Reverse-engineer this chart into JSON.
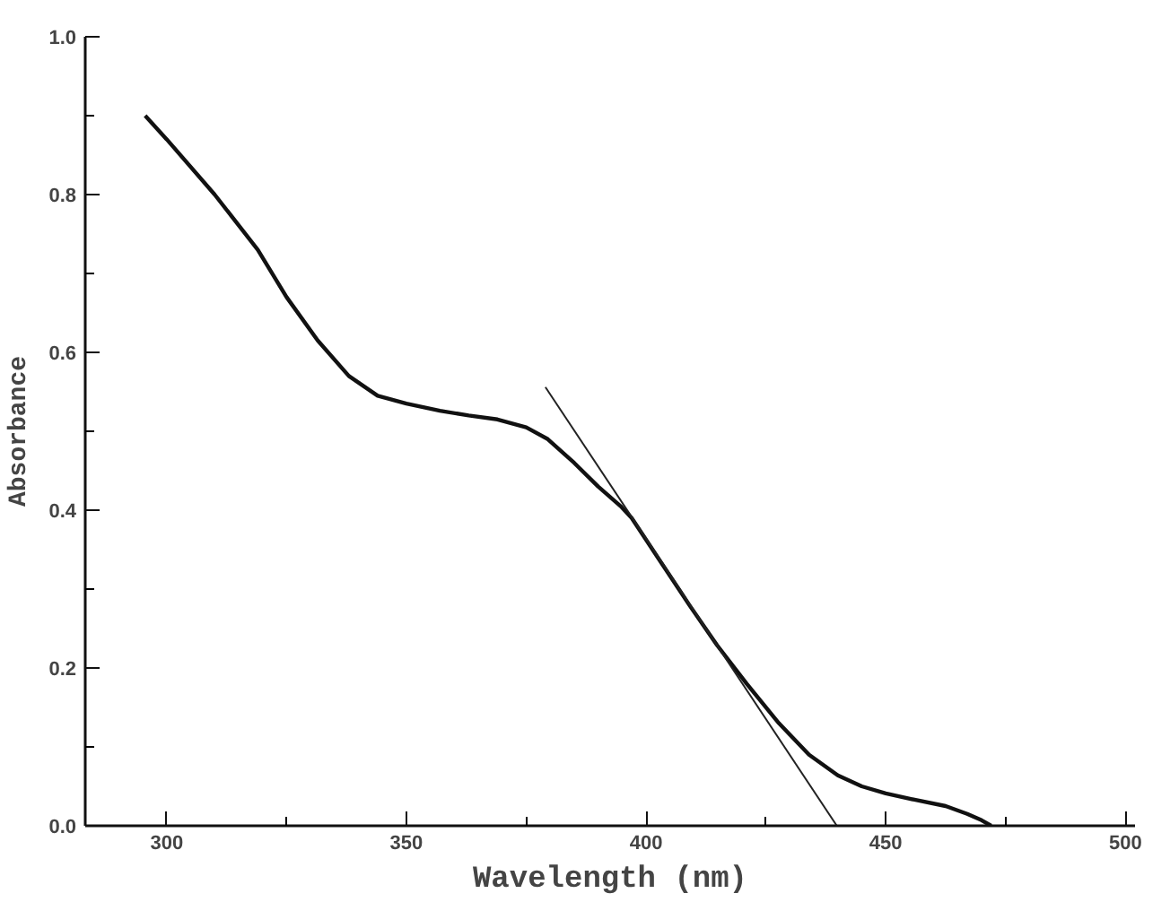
{
  "chart_data": {
    "type": "line",
    "xlabel": "Wavelength (nm)",
    "ylabel": "Absorbance",
    "xlim": [
      283,
      502
    ],
    "ylim": [
      0,
      1.0
    ],
    "xticks": [
      300,
      350,
      400,
      450,
      500
    ],
    "yticks": [
      {
        "value": 0,
        "label": "0.0"
      },
      {
        "value": 0.2,
        "label": "0.2"
      },
      {
        "value": 0.4,
        "label": "0.4"
      },
      {
        "value": 0.6,
        "label": "0.6"
      },
      {
        "value": 0.8,
        "label": "0.8"
      },
      {
        "value": 1,
        "label": "1.0"
      }
    ],
    "grid": false,
    "marker": "none",
    "series": [
      {
        "color": "#111111",
        "line_style": "solid",
        "x": [
          295.5,
          300,
          310,
          319,
          325,
          331.5,
          338,
          344,
          350,
          357,
          363,
          369,
          375,
          379.5,
          385,
          390,
          394.7,
          397,
          403,
          409,
          414.8,
          421,
          427.7,
          434,
          440,
          445,
          450,
          456,
          462.5,
          467,
          470,
          472
        ],
        "values": [
          0.9,
          0.87,
          0.8,
          0.73,
          0.67,
          0.615,
          0.57,
          0.545,
          0.535,
          0.526,
          0.52,
          0.515,
          0.505,
          0.49,
          0.46,
          0.43,
          0.405,
          0.39,
          0.335,
          0.28,
          0.229,
          0.18,
          0.13,
          0.09,
          0.064,
          0.05,
          0.041,
          0.033,
          0.025,
          0.015,
          0.007,
          0.0
        ]
      },
      {
        "color": "#222222",
        "line_style": "solid",
        "x": [
          379,
          439.8
        ],
        "values": [
          0.556,
          0.0
        ]
      }
    ]
  }
}
